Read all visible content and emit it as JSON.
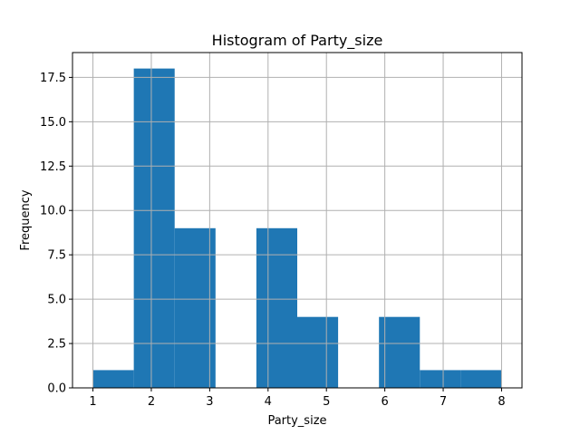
{
  "chart_data": {
    "type": "bar",
    "title": "Histogram of Party_size",
    "xlabel": "Party_size",
    "ylabel": "Frequency",
    "xlim": [
      0.65,
      8.35
    ],
    "ylim": [
      0,
      18.9
    ],
    "grid": true,
    "bar_color": "#1f77b4",
    "grid_color": "#b0b0b0",
    "bins": [
      {
        "start": 1.0,
        "end": 1.7,
        "count": 1
      },
      {
        "start": 1.7,
        "end": 2.4,
        "count": 18
      },
      {
        "start": 2.4,
        "end": 3.1,
        "count": 9
      },
      {
        "start": 3.1,
        "end": 3.8,
        "count": 0
      },
      {
        "start": 3.8,
        "end": 4.5,
        "count": 9
      },
      {
        "start": 4.5,
        "end": 5.2,
        "count": 4
      },
      {
        "start": 5.2,
        "end": 5.9,
        "count": 0
      },
      {
        "start": 5.9,
        "end": 6.6,
        "count": 4
      },
      {
        "start": 6.6,
        "end": 7.3,
        "count": 1
      },
      {
        "start": 7.3,
        "end": 8.0,
        "count": 1
      }
    ],
    "x_ticks": [
      {
        "value": 1,
        "label": "1"
      },
      {
        "value": 2,
        "label": "2"
      },
      {
        "value": 3,
        "label": "3"
      },
      {
        "value": 4,
        "label": "4"
      },
      {
        "value": 5,
        "label": "5"
      },
      {
        "value": 6,
        "label": "6"
      },
      {
        "value": 7,
        "label": "7"
      },
      {
        "value": 8,
        "label": "8"
      }
    ],
    "y_ticks": [
      {
        "value": 0,
        "label": "0.0"
      },
      {
        "value": 2.5,
        "label": "2.5"
      },
      {
        "value": 5,
        "label": "5.0"
      },
      {
        "value": 7.5,
        "label": "7.5"
      },
      {
        "value": 10,
        "label": "10.0"
      },
      {
        "value": 12.5,
        "label": "12.5"
      },
      {
        "value": 15,
        "label": "15.0"
      },
      {
        "value": 17.5,
        "label": "17.5"
      }
    ]
  }
}
